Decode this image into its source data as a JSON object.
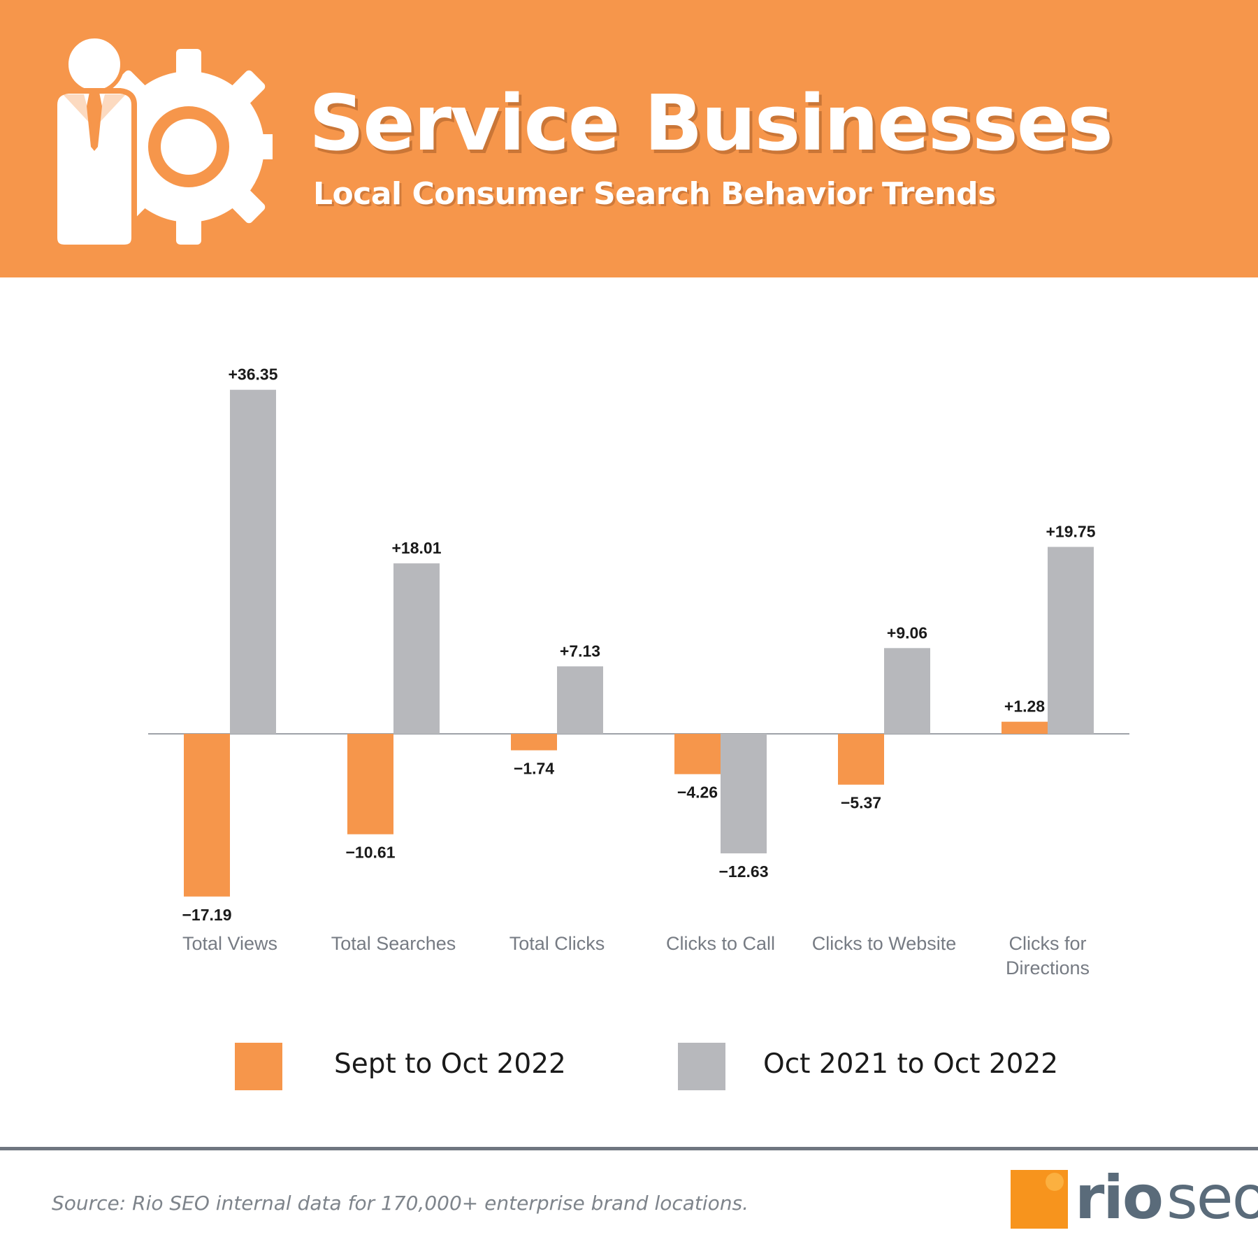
{
  "header": {
    "title": "Service Businesses",
    "subtitle": "Local Consumer Search Behavior Trends",
    "icon": "businessman-gear-icon",
    "background_color": "#f6964b"
  },
  "chart_data": {
    "type": "bar",
    "categories": [
      "Total Views",
      "Total Searches",
      "Total Clicks",
      "Clicks to Call",
      "Clicks to Website",
      "Clicks for Directions"
    ],
    "series": [
      {
        "name": "Sept to Oct 2022",
        "color": "#f6964b",
        "values": [
          -17.19,
          -10.61,
          -1.74,
          -4.26,
          -5.37,
          1.28
        ],
        "labels": [
          "−17.19",
          "−10.61",
          "−1.74",
          "−4.26",
          "−5.37",
          "+1.28"
        ]
      },
      {
        "name": "Oct 2021 to Oct 2022",
        "color": "#b7b8bc",
        "values": [
          36.35,
          18.01,
          7.13,
          -12.63,
          9.06,
          19.75
        ],
        "labels": [
          "+36.35",
          "+18.01",
          "+7.13",
          "−12.63",
          "+9.06",
          "+19.75"
        ]
      }
    ],
    "ylim": [
      -17.19,
      36.35
    ],
    "grid": false,
    "legend_position": "bottom"
  },
  "legend": {
    "series1_label": "Sept to Oct 2022",
    "series2_label": "Oct 2021 to Oct 2022"
  },
  "footer": {
    "source": "Source: Rio SEO internal data for 170,000+ enterprise brand locations.",
    "logo_rio": "rio",
    "logo_seo": "seo"
  }
}
